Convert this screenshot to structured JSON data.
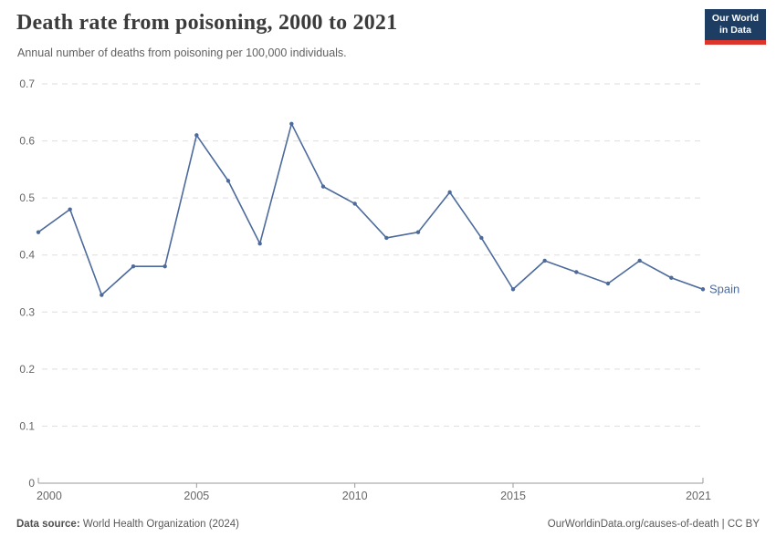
{
  "header": {
    "title": "Death rate from poisoning, 2000 to 2021",
    "subtitle": "Annual number of deaths from poisoning per 100,000 individuals."
  },
  "logo": {
    "line1": "Our World",
    "line2": "in Data",
    "bg_color": "#1d3d63",
    "accent_color": "#dc352b"
  },
  "chart_data": {
    "type": "line",
    "title": "Death rate from poisoning, 2000 to 2021",
    "ylabel": "",
    "xlabel": "",
    "x": [
      2000,
      2001,
      2002,
      2003,
      2004,
      2005,
      2006,
      2007,
      2008,
      2009,
      2010,
      2011,
      2012,
      2013,
      2014,
      2015,
      2016,
      2017,
      2018,
      2019,
      2020,
      2021
    ],
    "series": [
      {
        "name": "Spain",
        "color": "#4c6a9c",
        "values": [
          0.44,
          0.48,
          0.33,
          0.38,
          0.38,
          0.61,
          0.53,
          0.42,
          0.63,
          0.52,
          0.49,
          0.43,
          0.44,
          0.51,
          0.43,
          0.34,
          0.39,
          0.37,
          0.35,
          0.39,
          0.36,
          0.34
        ]
      }
    ],
    "ylim": [
      0,
      0.7
    ],
    "yticks": [
      0,
      0.1,
      0.2,
      0.3,
      0.4,
      0.5,
      0.6,
      0.7
    ],
    "xticks": [
      2000,
      2005,
      2010,
      2015,
      2021
    ],
    "grid": "horizontal-dashed",
    "legend_position": "end-of-line-label",
    "colors": {
      "axis": "#9a9a9a",
      "grid": "#dedede",
      "tick_label": "#666666"
    }
  },
  "footer": {
    "source_label": "Data source:",
    "source_value": "World Health Organization (2024)",
    "attribution": "OurWorldinData.org/causes-of-death | CC BY"
  }
}
